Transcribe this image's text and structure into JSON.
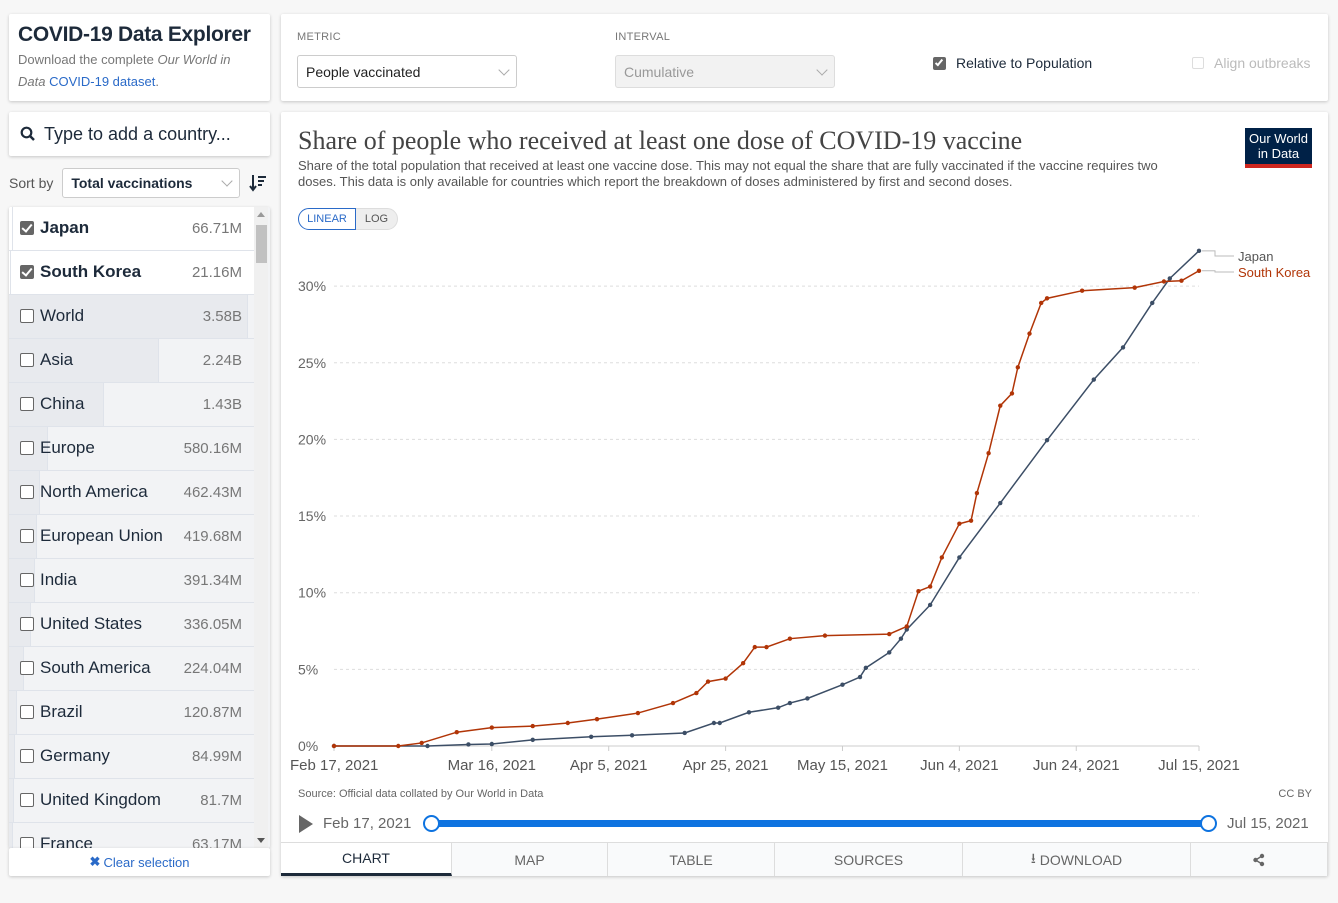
{
  "header": {
    "title": "COVID-19 Data Explorer",
    "desc_prefix": "Download the complete ",
    "desc_italic1": "Our World in Data",
    "desc_link": "COVID-19 dataset",
    "desc_suffix": "."
  },
  "search": {
    "placeholder": "Type to add a country..."
  },
  "sort": {
    "label": "Sort by",
    "value": "Total vaccinations"
  },
  "countries": [
    {
      "name": "Japan",
      "value": "66.71M",
      "checked": true
    },
    {
      "name": "South Korea",
      "value": "21.16M",
      "checked": true
    },
    {
      "name": "World",
      "value": "3.58B",
      "checked": false
    },
    {
      "name": "Asia",
      "value": "2.24B",
      "checked": false
    },
    {
      "name": "China",
      "value": "1.43B",
      "checked": false
    },
    {
      "name": "Europe",
      "value": "580.16M",
      "checked": false
    },
    {
      "name": "North America",
      "value": "462.43M",
      "checked": false
    },
    {
      "name": "European Union",
      "value": "419.68M",
      "checked": false
    },
    {
      "name": "India",
      "value": "391.34M",
      "checked": false
    },
    {
      "name": "United States",
      "value": "336.05M",
      "checked": false
    },
    {
      "name": "South America",
      "value": "224.04M",
      "checked": false
    },
    {
      "name": "Brazil",
      "value": "120.87M",
      "checked": false
    },
    {
      "name": "Germany",
      "value": "84.99M",
      "checked": false
    },
    {
      "name": "United Kingdom",
      "value": "81.7M",
      "checked": false
    },
    {
      "name": "France",
      "value": "63.17M",
      "checked": false
    }
  ],
  "clear_label": "Clear selection",
  "controls": {
    "metric_label": "METRIC",
    "metric_value": "People vaccinated",
    "interval_label": "INTERVAL",
    "interval_value": "Cumulative",
    "relative_label": "Relative to Population",
    "relative_checked": true,
    "align_label": "Align outbreaks",
    "align_checked": false
  },
  "chart": {
    "title": "Share of people who received at least one dose of COVID-19 vaccine",
    "subtitle": "Share of the total population that received at least one vaccine dose. This may not equal the share that are fully vaccinated if the vaccine requires two doses. This data is only available for countries which report the breakdown of doses administered by first and second doses.",
    "logo": "Our World in Data",
    "scale_linear": "LINEAR",
    "scale_log": "LOG",
    "scale_selected": "linear",
    "source": "Source: Official data collated by Our World in Data",
    "license": "CC BY",
    "timeline_start": "Feb 17, 2021",
    "timeline_end": "Jul 15, 2021"
  },
  "chart_data": {
    "type": "line",
    "x_start": "2021-02-17",
    "x_end": "2021-07-15",
    "ylim": [
      0,
      32.5
    ],
    "y_ticks": [
      "0%",
      "5%",
      "10%",
      "15%",
      "20%",
      "25%",
      "30%"
    ],
    "x_ticks": [
      [
        "2021-02-17",
        "Feb 17, 2021"
      ],
      [
        "2021-03-16",
        "Mar 16, 2021"
      ],
      [
        "2021-04-05",
        "Apr 5, 2021"
      ],
      [
        "2021-04-25",
        "Apr 25, 2021"
      ],
      [
        "2021-05-15",
        "May 15, 2021"
      ],
      [
        "2021-06-04",
        "Jun 4, 2021"
      ],
      [
        "2021-06-24",
        "Jun 24, 2021"
      ],
      [
        "2021-07-15",
        "Jul 15, 2021"
      ]
    ],
    "grid": true,
    "series": [
      {
        "name": "Japan",
        "color": "#3c4e66",
        "points": [
          [
            "2021-02-17",
            0
          ],
          [
            "2021-03-05",
            0
          ],
          [
            "2021-03-12",
            0.1
          ],
          [
            "2021-03-16",
            0.13
          ],
          [
            "2021-03-23",
            0.4
          ],
          [
            "2021-04-02",
            0.6
          ],
          [
            "2021-04-09",
            0.7
          ],
          [
            "2021-04-18",
            0.85
          ],
          [
            "2021-04-23",
            1.5
          ],
          [
            "2021-04-24",
            1.5
          ],
          [
            "2021-04-29",
            2.2
          ],
          [
            "2021-05-04",
            2.5
          ],
          [
            "2021-05-06",
            2.8
          ],
          [
            "2021-05-09",
            3.1
          ],
          [
            "2021-05-15",
            4.0
          ],
          [
            "2021-05-18",
            4.5
          ],
          [
            "2021-05-19",
            5.1
          ],
          [
            "2021-05-23",
            6.1
          ],
          [
            "2021-05-25",
            7.0
          ],
          [
            "2021-05-26",
            7.6
          ],
          [
            "2021-05-30",
            9.2
          ],
          [
            "2021-06-04",
            12.3
          ],
          [
            "2021-06-11",
            15.85
          ],
          [
            "2021-06-19",
            19.95
          ],
          [
            "2021-06-27",
            23.9
          ],
          [
            "2021-07-02",
            26.0
          ],
          [
            "2021-07-07",
            28.9
          ],
          [
            "2021-07-10",
            30.5
          ],
          [
            "2021-07-15",
            32.3
          ]
        ]
      },
      {
        "name": "South Korea",
        "color": "#b13507",
        "points": [
          [
            "2021-02-17",
            0
          ],
          [
            "2021-02-28",
            0
          ],
          [
            "2021-03-04",
            0.2
          ],
          [
            "2021-03-10",
            0.9
          ],
          [
            "2021-03-16",
            1.2
          ],
          [
            "2021-03-23",
            1.3
          ],
          [
            "2021-03-29",
            1.5
          ],
          [
            "2021-04-03",
            1.75
          ],
          [
            "2021-04-10",
            2.15
          ],
          [
            "2021-04-16",
            2.8
          ],
          [
            "2021-04-20",
            3.45
          ],
          [
            "2021-04-22",
            4.2
          ],
          [
            "2021-04-25",
            4.4
          ],
          [
            "2021-04-28",
            5.4
          ],
          [
            "2021-04-30",
            6.45
          ],
          [
            "2021-05-02",
            6.45
          ],
          [
            "2021-05-06",
            7.0
          ],
          [
            "2021-05-12",
            7.2
          ],
          [
            "2021-05-23",
            7.3
          ],
          [
            "2021-05-26",
            7.8
          ],
          [
            "2021-05-28",
            10.1
          ],
          [
            "2021-05-30",
            10.4
          ],
          [
            "2021-06-01",
            12.3
          ],
          [
            "2021-06-04",
            14.5
          ],
          [
            "2021-06-06",
            14.7
          ],
          [
            "2021-06-07",
            16.5
          ],
          [
            "2021-06-09",
            19.1
          ],
          [
            "2021-06-11",
            22.2
          ],
          [
            "2021-06-13",
            23.0
          ],
          [
            "2021-06-14",
            24.7
          ],
          [
            "2021-06-16",
            26.9
          ],
          [
            "2021-06-18",
            28.9
          ],
          [
            "2021-06-19",
            29.2
          ],
          [
            "2021-06-25",
            29.7
          ],
          [
            "2021-07-04",
            29.9
          ],
          [
            "2021-07-09",
            30.3
          ],
          [
            "2021-07-12",
            30.35
          ],
          [
            "2021-07-15",
            31.0
          ]
        ]
      }
    ]
  },
  "tabs": [
    {
      "label": "CHART",
      "active": true
    },
    {
      "label": "MAP"
    },
    {
      "label": "TABLE"
    },
    {
      "label": "SOURCES"
    },
    {
      "label": "DOWNLOAD",
      "icon": "download-icon"
    },
    {
      "label": "",
      "icon": "share-icon"
    }
  ]
}
